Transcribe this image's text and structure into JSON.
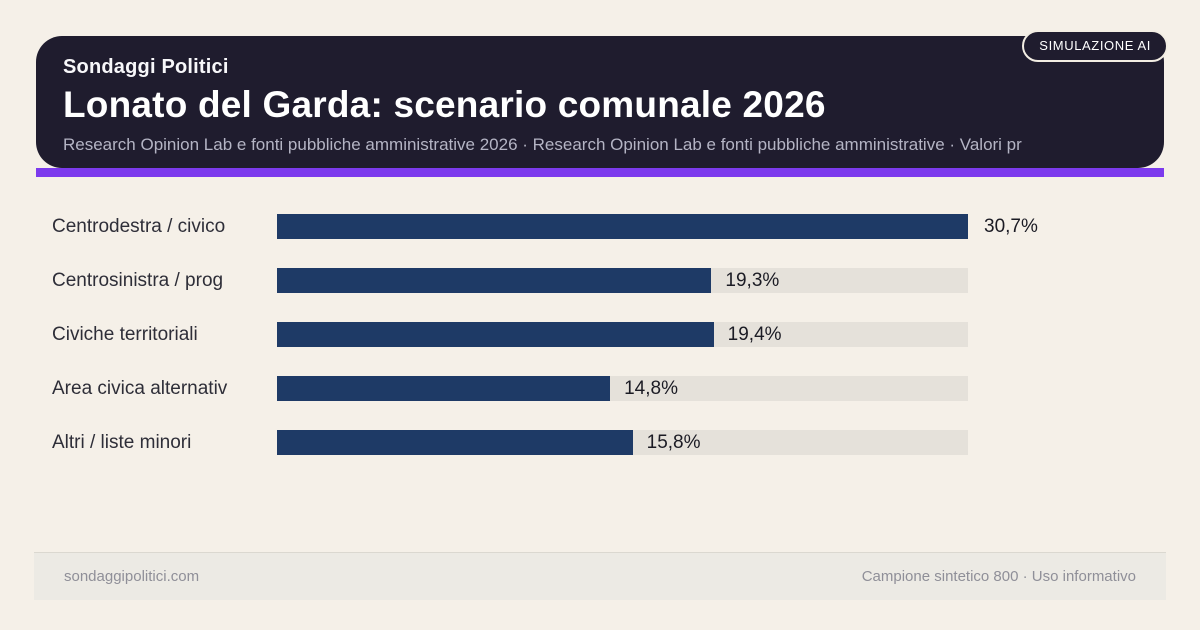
{
  "badge": {
    "label": "SIMULAZIONE AI"
  },
  "header": {
    "kicker": "Sondaggi Politici",
    "title": "Lonato del Garda: scenario comunale 2026",
    "subtitle": "Research Opinion Lab e fonti pubbliche amministrative 2026 · Research Opinion Lab e fonti pubbliche amministrative · Valori pr"
  },
  "chart_data": {
    "type": "bar",
    "orientation": "horizontal",
    "title": "Lonato del Garda: scenario comunale 2026",
    "categories": [
      "Centrodestra / civico",
      "Centrosinistra / prog",
      "Civiche territoriali",
      "Area civica alternativ",
      "Altri / liste minori"
    ],
    "values": [
      30.7,
      19.3,
      19.4,
      14.8,
      15.8
    ],
    "value_labels": [
      "30,7%",
      "19,3%",
      "19,4%",
      "14,8%",
      "15,8%"
    ],
    "xlim": [
      0,
      30.7
    ],
    "grid": false,
    "legend": null,
    "bar_color": "#1e3a66",
    "track_color": "#e5e1da"
  },
  "footer": {
    "left": "sondaggipolitici.com",
    "right": "Campione sintetico 800 · Uso informativo"
  },
  "colors": {
    "background": "#f5f0e8",
    "header_bg": "#1f1c2e",
    "accent": "#7c3aed",
    "bar": "#1e3a66",
    "track": "#e5e1da",
    "footer_bg": "#eceae4"
  }
}
